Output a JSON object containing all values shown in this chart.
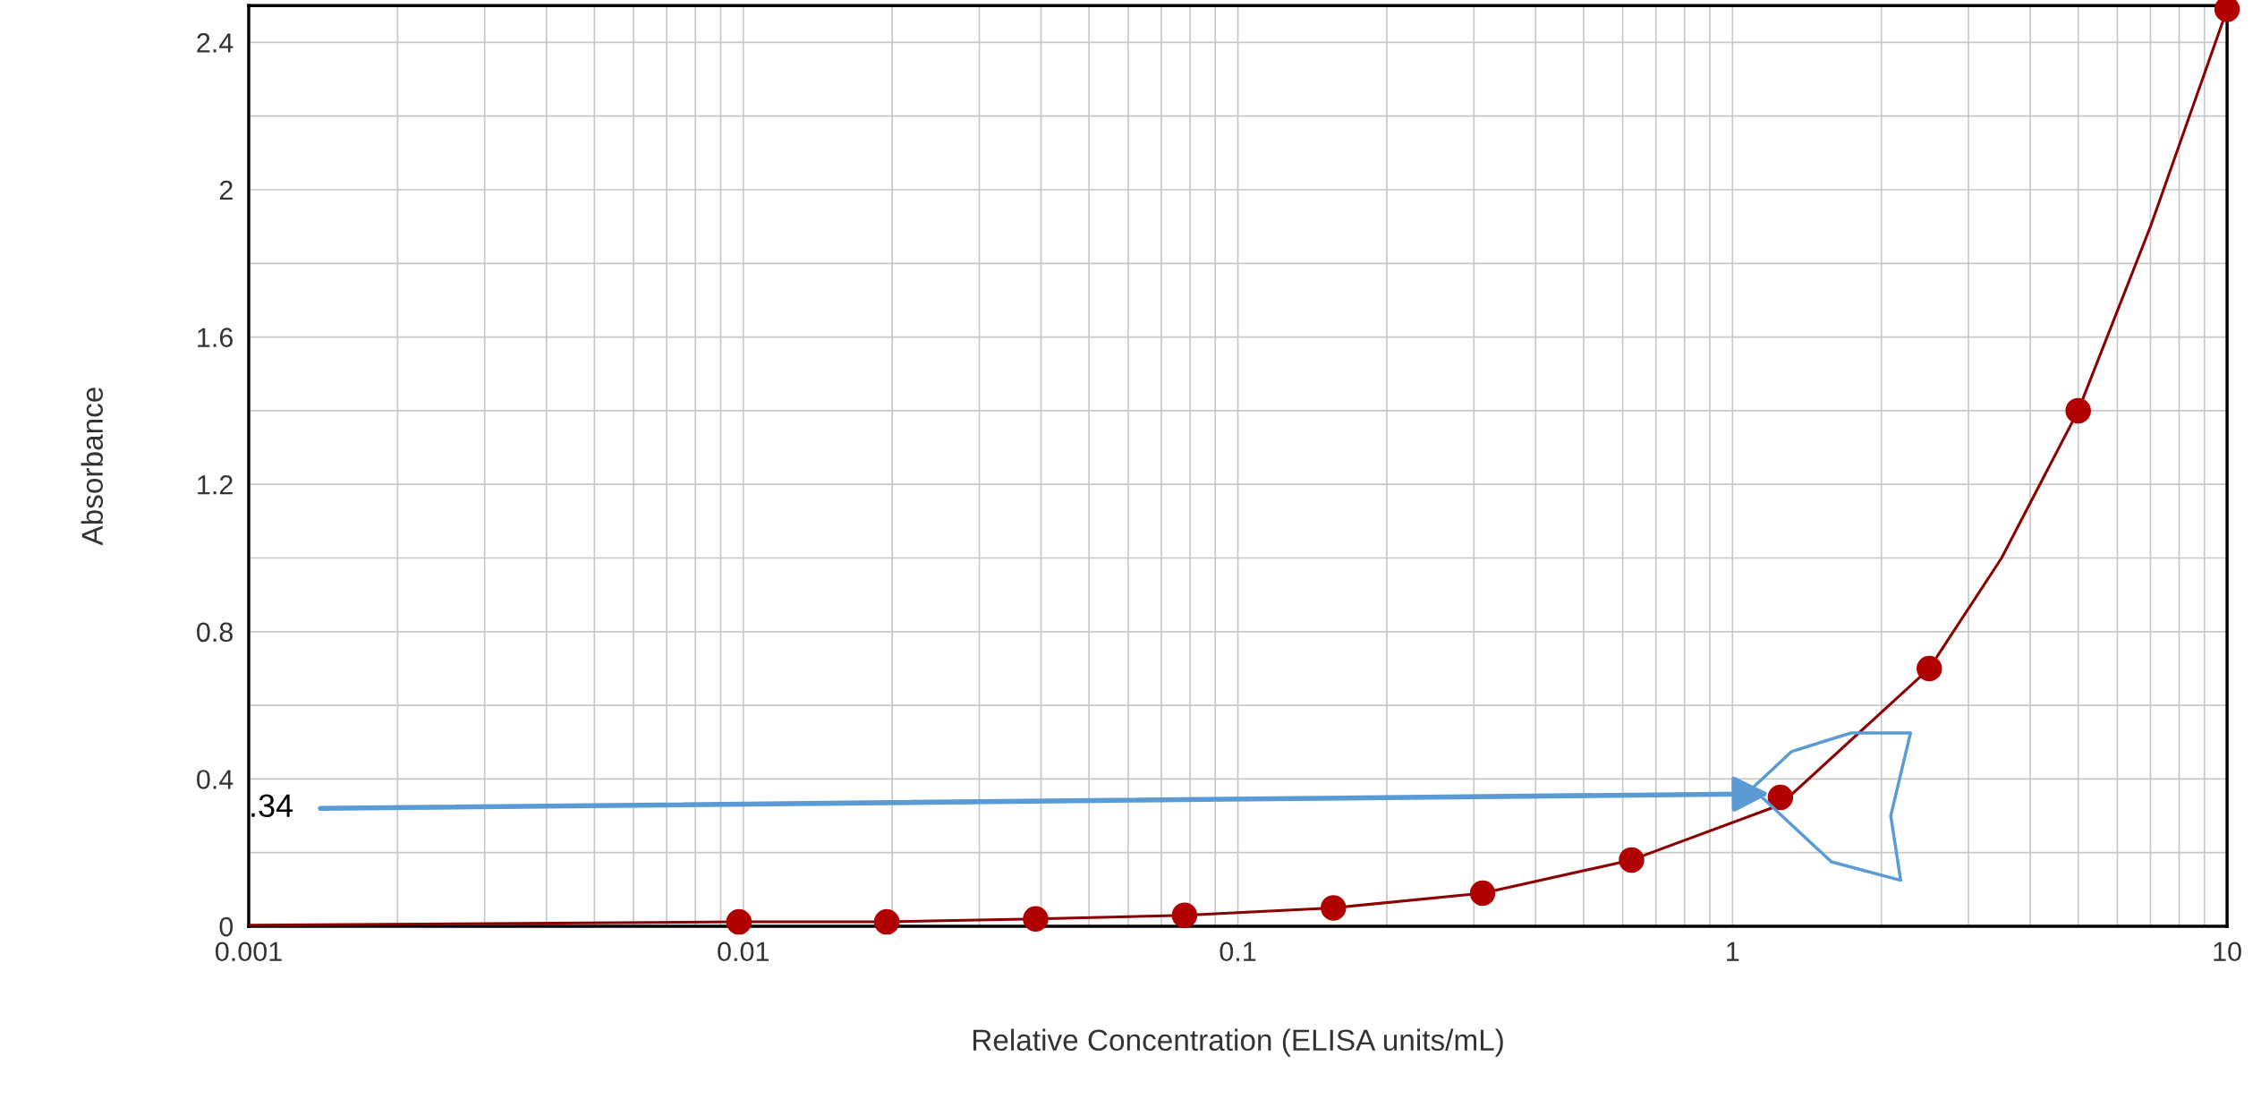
{
  "chart_data": {
    "type": "scatter",
    "xlabel": "Relative Concentration (ELISA units/mL)",
    "ylabel": "Absorbance",
    "log": "x",
    "xlim": [
      0.001,
      10
    ],
    "ylim": [
      0,
      2.5
    ],
    "xticks": [
      0.001,
      0.01,
      0.1,
      1,
      10
    ],
    "yticks": [
      0,
      0.4,
      0.8,
      1.2,
      1.6,
      2,
      2.4
    ],
    "grid": true,
    "marker": "circle",
    "series": [
      {
        "type": "line",
        "color": "#8b0000",
        "x": [
          0.001,
          0.0098,
          0.0195,
          0.039,
          0.078,
          0.156,
          0.3125,
          0.625,
          1.25,
          2.5,
          3.5,
          5,
          7,
          10
        ],
        "values": [
          0.003,
          0.012,
          0.012,
          0.02,
          0.03,
          0.05,
          0.09,
          0.18,
          0.33,
          0.7,
          1.0,
          1.4,
          1.9,
          2.49
        ],
        "marker": "none",
        "line_style": "solid"
      },
      {
        "color": "#b00000",
        "x": [
          0.0098,
          0.0195,
          0.039,
          0.078,
          0.156,
          0.3125,
          0.625,
          1.25,
          2.5,
          5,
          10
        ],
        "values": [
          0.012,
          0.012,
          0.02,
          0.03,
          0.05,
          0.09,
          0.18,
          0.35,
          0.7,
          1.4,
          2.49
        ]
      }
    ],
    "annotations": [
      ".34"
    ]
  }
}
